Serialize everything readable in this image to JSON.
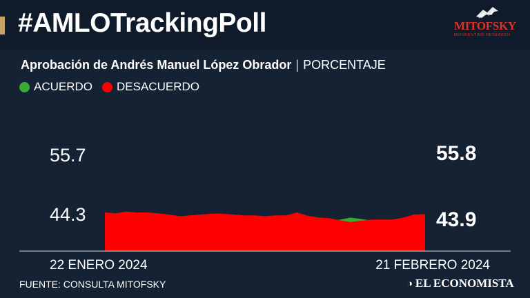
{
  "header": {
    "hashtag": "#AMLOTrackingPoll",
    "logo_word": "MITOFSKY",
    "logo_tagline": "REINVENTING RESEARCH"
  },
  "subtitle": {
    "main": "Aprobación de Andrés Manuel López Obrador",
    "separator": "|",
    "unit": "PORCENTAJE"
  },
  "legend": [
    {
      "label": "ACUERDO",
      "color": "#3aaa35"
    },
    {
      "label": "DESACUERDO",
      "color": "#ff0000"
    }
  ],
  "footer": {
    "source": "FUENTE: CONSULTA MITOFSKY",
    "brand": "EL ECONOMISTA",
    "brand_icon": "el-economista-logo-icon"
  },
  "chart_data": {
    "type": "area",
    "x_start_label": "22 ENERO 2024",
    "x_end_label": "21 FEBRERO 2024",
    "grid": false,
    "series": [
      {
        "name": "ACUERDO",
        "color": "#3aaa35",
        "start_label": "55.7",
        "end_label": "55.8",
        "values": [
          55.7,
          56.1,
          55.9,
          56.0,
          55.8,
          56.0,
          56.0,
          56.2,
          56.0,
          56.0,
          55.8,
          55.6,
          55.8,
          56.2,
          56.0,
          56.2,
          56.0,
          56.0,
          55.8,
          56.3,
          56.6,
          57.2,
          57.4,
          58.0,
          57.6,
          57.2,
          56.9,
          57.2,
          56.5,
          55.8,
          55.8
        ]
      },
      {
        "name": "DESACUERDO",
        "color": "#ff0000",
        "start_label": "44.3",
        "end_label": "43.9",
        "values": [
          44.3,
          44.1,
          44.5,
          44.3,
          44.3,
          44.1,
          43.8,
          43.4,
          43.6,
          43.8,
          44.0,
          44.0,
          43.8,
          43.6,
          43.6,
          43.4,
          43.6,
          43.6,
          44.3,
          43.5,
          43.1,
          42.9,
          42.4,
          42.0,
          42.3,
          42.6,
          42.6,
          42.6,
          43.1,
          43.8,
          43.9
        ]
      }
    ]
  }
}
